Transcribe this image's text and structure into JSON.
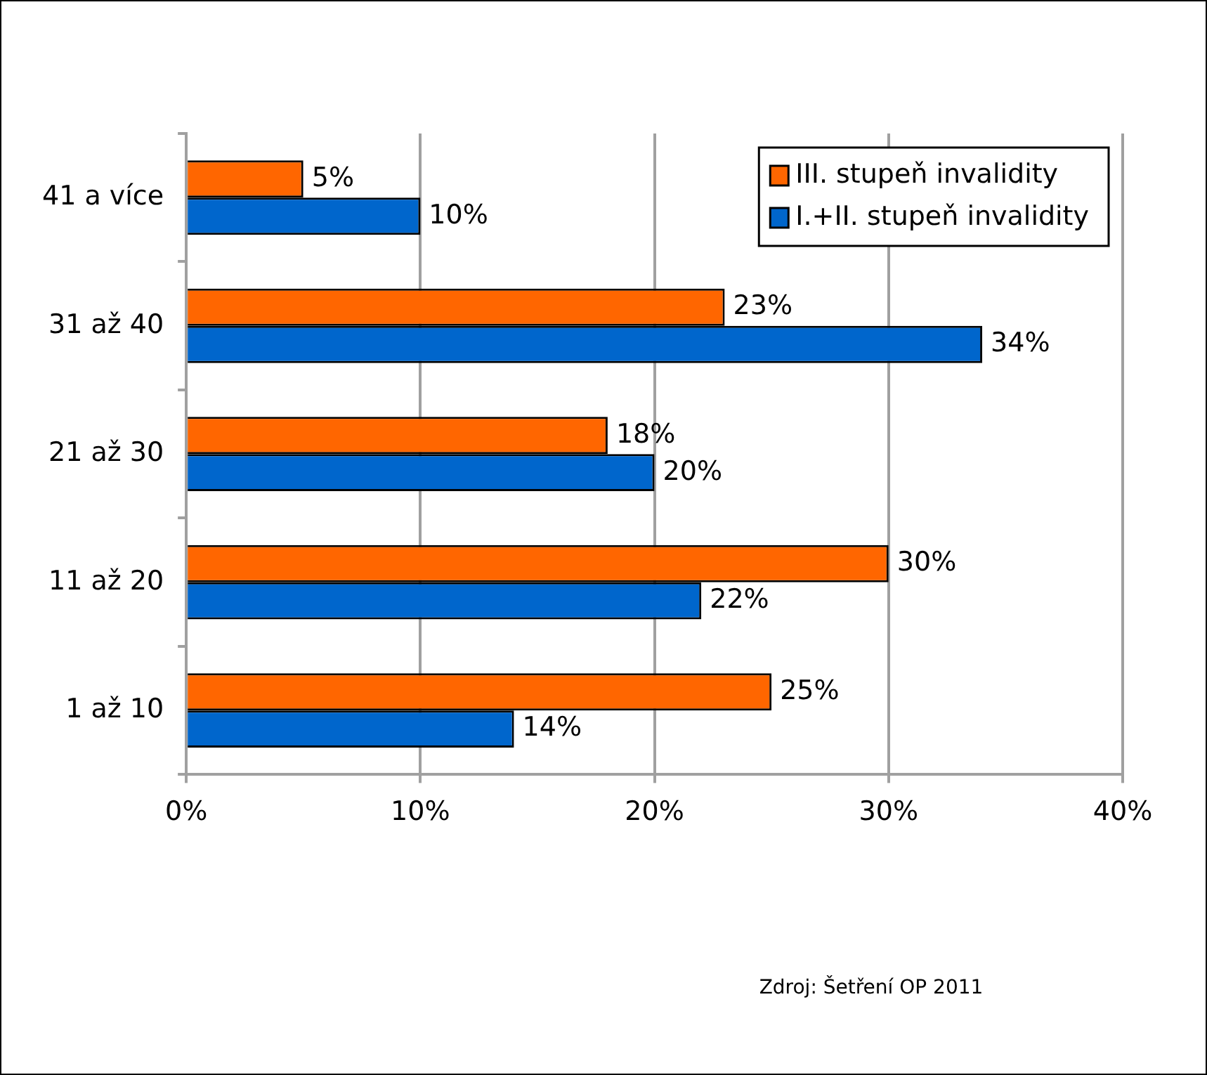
{
  "chart_data": {
    "type": "bar",
    "orientation": "horizontal",
    "categories": [
      "41 a více",
      "31 až 40",
      "21 až 30",
      "11 až 20",
      "1 až 10"
    ],
    "series": [
      {
        "name": "III. stupeň invalidity",
        "color": "#ff6600",
        "values": [
          5,
          23,
          18,
          30,
          25
        ],
        "value_labels": [
          "5%",
          "23%",
          "18%",
          "30%",
          "25%"
        ]
      },
      {
        "name": "I.+II. stupeň invalidity",
        "color": "#0066cc",
        "values": [
          10,
          34,
          20,
          22,
          14
        ],
        "value_labels": [
          "10%",
          "34%",
          "20%",
          "22%",
          "14%"
        ]
      }
    ],
    "xlim": [
      0,
      40
    ],
    "xticks": [
      {
        "value": 0,
        "label": "0%"
      },
      {
        "value": 10,
        "label": "10%"
      },
      {
        "value": 20,
        "label": "20%"
      },
      {
        "value": 30,
        "label": "30%"
      },
      {
        "value": 40,
        "label": "40%"
      }
    ],
    "grid": "x",
    "legend": "top right",
    "annotations": [
      "Zdroj: Šetření OP 2011"
    ]
  }
}
